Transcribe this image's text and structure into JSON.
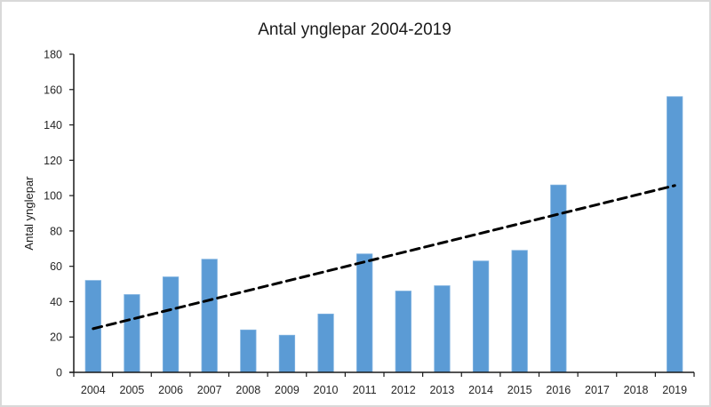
{
  "chart_data": {
    "type": "bar",
    "title": "Antal ynglepar 2004-2019",
    "xlabel": "",
    "ylabel": "Antal ynglepar",
    "ylim": [
      0,
      180
    ],
    "yticks": [
      "0",
      "20",
      "40",
      "60",
      "80",
      "100",
      "120",
      "140",
      "160",
      "180"
    ],
    "ytick_values": [
      0,
      20,
      40,
      60,
      80,
      100,
      120,
      140,
      160,
      180
    ],
    "categories": [
      "2004",
      "2005",
      "2006",
      "2007",
      "2008",
      "2009",
      "2010",
      "2011",
      "2012",
      "2013",
      "2014",
      "2015",
      "2016",
      "2017",
      "2018",
      "2019"
    ],
    "series": [
      {
        "name": "Antal ynglepar",
        "values": [
          52,
          44,
          54,
          64,
          24,
          21,
          33,
          67,
          46,
          49,
          63,
          69,
          106,
          null,
          null,
          156
        ],
        "color": "#5b9bd5"
      }
    ],
    "trendline": {
      "type": "linear",
      "style": "dashed",
      "color": "#000000",
      "start_value": 24.7,
      "end_value": 105.7
    },
    "grid": false,
    "legend": "none"
  }
}
